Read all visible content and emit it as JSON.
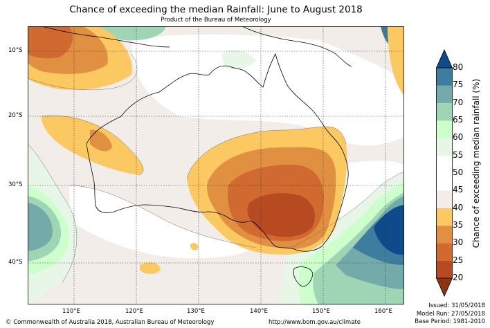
{
  "title": "Chance of exceeding the median Rainfall: June to August 2018",
  "subtitle": "Product of the Bureau of Meteorology",
  "latitude_labels": [
    "10°S",
    "20°S",
    "30°S",
    "40°S"
  ],
  "longitude_labels": [
    "110°E",
    "120°E",
    "130°E",
    "140°E",
    "150°E",
    "160°E"
  ],
  "colorbar": {
    "title": "Chance of exceeding median rainfall (%)",
    "ticks": [
      "20",
      "25",
      "30",
      "35",
      "40",
      "45",
      "50",
      "55",
      "60",
      "65",
      "70",
      "75",
      "80"
    ],
    "colors": [
      "#8b3412",
      "#b84a22",
      "#d06a30",
      "#e09040",
      "#fcc862",
      "#f2ede8",
      "#ffffff",
      "#ffffff",
      "#e8f6e8",
      "#ccffcc",
      "#9fd4b4",
      "#75aaaa",
      "#3e7ca0",
      "#0f4b8a"
    ]
  },
  "footer": {
    "copyright": "© Commonwealth of Australia 2018, Australian Bureau of Meteorology",
    "url": "http://www.bom.gov.au/climate",
    "issued": "Issued: 31/05/2018",
    "model_run": "Model Run: 27/05/2018",
    "base_period": "Base Period: 1981-2010"
  }
}
